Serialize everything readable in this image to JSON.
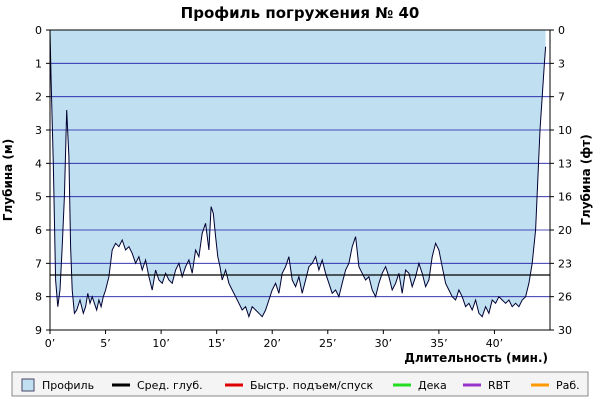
{
  "chart_data": {
    "type": "area",
    "title": "Профиль погружения № 40",
    "xlabel": "Длительность (мин.)",
    "ylabel_left": "Глубина (м)",
    "ylabel_right": "Глубина (фт)",
    "xlim": [
      0,
      45
    ],
    "ylim": [
      0,
      9
    ],
    "y_inverted": true,
    "grid": true,
    "x_ticks": [
      0,
      5,
      10,
      15,
      20,
      25,
      30,
      35,
      40
    ],
    "x_tick_labels": [
      "0’",
      "5’",
      "10’",
      "15’",
      "20’",
      "25’",
      "30’",
      "35’",
      "40’"
    ],
    "y_left_ticks": [
      0,
      1,
      2,
      3,
      4,
      5,
      6,
      7,
      8,
      9
    ],
    "y_right_tick_labels": [
      "0",
      "3",
      "7",
      "10",
      "13",
      "16",
      "20",
      "23",
      "26",
      "30"
    ],
    "avg_depth": 7.35,
    "colors": {
      "profile_fill": "#c0dff0",
      "profile_line": "#000033",
      "grid": "#1a1aa6",
      "avg_line": "#000000"
    },
    "series": [
      {
        "name": "Профиль",
        "x": [
          0,
          0.1,
          0.3,
          0.5,
          0.7,
          0.9,
          1.1,
          1.3,
          1.5,
          1.7,
          1.85,
          2.0,
          2.2,
          2.4,
          2.7,
          3.0,
          3.2,
          3.4,
          3.6,
          3.8,
          4.0,
          4.2,
          4.4,
          4.6,
          4.8,
          5.0,
          5.3,
          5.6,
          5.9,
          6.2,
          6.5,
          6.8,
          7.1,
          7.4,
          7.7,
          8.0,
          8.3,
          8.6,
          8.9,
          9.2,
          9.5,
          9.8,
          10.1,
          10.4,
          10.7,
          11.0,
          11.3,
          11.6,
          11.9,
          12.2,
          12.5,
          12.8,
          13.1,
          13.4,
          13.7,
          14.0,
          14.3,
          14.5,
          14.7,
          14.9,
          15.1,
          15.3,
          15.5,
          15.8,
          16.1,
          16.4,
          16.7,
          17.0,
          17.3,
          17.6,
          17.9,
          18.2,
          18.5,
          18.8,
          19.1,
          19.4,
          19.7,
          20.0,
          20.3,
          20.6,
          20.9,
          21.2,
          21.5,
          21.8,
          22.1,
          22.4,
          22.7,
          23.0,
          23.3,
          23.6,
          23.9,
          24.2,
          24.5,
          24.8,
          25.1,
          25.4,
          25.7,
          26.0,
          26.3,
          26.6,
          26.9,
          27.2,
          27.5,
          27.8,
          28.1,
          28.4,
          28.7,
          29.0,
          29.3,
          29.6,
          29.9,
          30.2,
          30.5,
          30.8,
          31.1,
          31.4,
          31.7,
          32.0,
          32.3,
          32.6,
          32.9,
          33.2,
          33.5,
          33.8,
          34.1,
          34.4,
          34.7,
          35.0,
          35.3,
          35.6,
          35.9,
          36.2,
          36.5,
          36.8,
          37.1,
          37.4,
          37.7,
          38.0,
          38.3,
          38.6,
          38.9,
          39.2,
          39.5,
          39.8,
          40.1,
          40.4,
          40.7,
          41.0,
          41.3,
          41.6,
          41.9,
          42.2,
          42.5,
          42.8,
          43.1,
          43.4,
          43.7,
          43.9,
          44.1,
          44.3,
          44.5,
          44.6
        ],
        "depth": [
          0.0,
          1.5,
          4.0,
          7.5,
          8.3,
          7.8,
          6.5,
          5.0,
          2.4,
          3.8,
          6.5,
          7.8,
          8.5,
          8.4,
          8.1,
          8.5,
          8.3,
          7.9,
          8.2,
          8.0,
          8.2,
          8.4,
          8.1,
          8.3,
          8.0,
          7.8,
          7.4,
          6.6,
          6.4,
          6.5,
          6.3,
          6.6,
          6.5,
          6.7,
          7.0,
          6.8,
          7.2,
          6.9,
          7.4,
          7.8,
          7.2,
          7.5,
          7.6,
          7.3,
          7.5,
          7.6,
          7.2,
          7.0,
          7.4,
          7.1,
          6.9,
          7.3,
          6.6,
          6.8,
          6.1,
          5.8,
          6.6,
          5.3,
          5.5,
          6.2,
          6.8,
          7.1,
          7.5,
          7.2,
          7.6,
          7.8,
          8.0,
          8.2,
          8.4,
          8.3,
          8.6,
          8.3,
          8.4,
          8.5,
          8.6,
          8.4,
          8.1,
          7.8,
          7.6,
          7.9,
          7.3,
          7.1,
          6.8,
          7.5,
          7.7,
          7.4,
          7.9,
          7.5,
          7.1,
          7.0,
          6.8,
          7.2,
          6.9,
          7.3,
          7.6,
          7.9,
          7.8,
          8.0,
          7.6,
          7.2,
          7.0,
          6.5,
          6.2,
          7.1,
          7.3,
          7.5,
          7.4,
          7.8,
          8.0,
          7.6,
          7.3,
          7.1,
          7.4,
          7.8,
          7.6,
          7.3,
          7.9,
          7.2,
          7.3,
          7.7,
          7.4,
          7.0,
          7.3,
          7.7,
          7.5,
          6.8,
          6.4,
          6.6,
          7.1,
          7.6,
          7.8,
          8.0,
          8.1,
          7.8,
          8.0,
          8.3,
          8.2,
          8.4,
          8.1,
          8.5,
          8.6,
          8.3,
          8.5,
          8.1,
          8.2,
          8.0,
          8.1,
          8.2,
          8.1,
          8.3,
          8.2,
          8.3,
          8.1,
          8.0,
          7.6,
          7.0,
          6.0,
          4.5,
          3.0,
          2.0,
          1.0,
          0.5
        ]
      }
    ],
    "legend": [
      {
        "label": "Профиль",
        "kind": "box",
        "color": "#c0dff0"
      },
      {
        "label": "Сред. глуб.",
        "kind": "line",
        "color": "#000000"
      },
      {
        "label": "Быстр. подъем/спуск",
        "kind": "line",
        "color": "#e00000"
      },
      {
        "label": "Дека",
        "kind": "line",
        "color": "#22dd22"
      },
      {
        "label": "RBT",
        "kind": "line",
        "color": "#9933cc"
      },
      {
        "label": "Раб.",
        "kind": "line",
        "color": "#ff9900"
      }
    ]
  }
}
